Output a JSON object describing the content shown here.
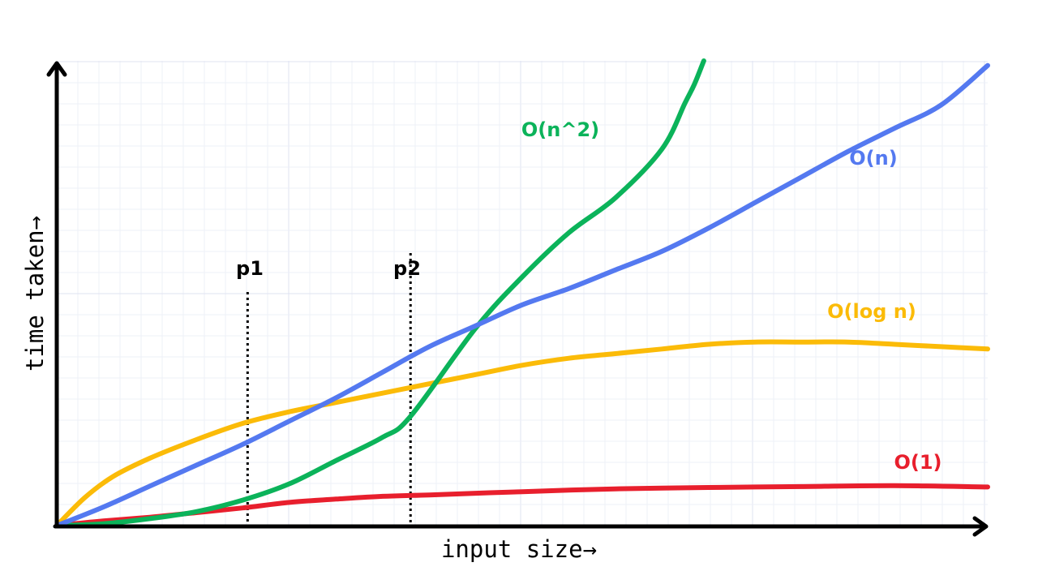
{
  "chart_data": {
    "type": "line",
    "xlabel": "input size→",
    "ylabel": "time taken→",
    "xlim": [
      0,
      10
    ],
    "ylim": [
      0,
      10
    ],
    "grid": true,
    "ticks_labeled": false,
    "series": [
      {
        "name": "O(n^2)",
        "color": "#0bb35a",
        "points": [
          [
            0,
            0
          ],
          [
            0.5,
            0.04
          ],
          [
            1,
            0.15
          ],
          [
            1.5,
            0.3
          ],
          [
            2,
            0.55
          ],
          [
            2.5,
            0.9
          ],
          [
            3,
            1.4
          ],
          [
            3.5,
            1.9
          ],
          [
            3.8,
            2.35
          ],
          [
            4.5,
            4.25
          ],
          [
            5,
            5.35
          ],
          [
            5.5,
            6.3
          ],
          [
            6,
            7.05
          ],
          [
            6.5,
            8.1
          ],
          [
            6.75,
            9.1
          ],
          [
            6.85,
            9.5
          ],
          [
            6.95,
            10
          ]
        ]
      },
      {
        "name": "O(n)",
        "color": "#5479f0",
        "points": [
          [
            0,
            0
          ],
          [
            0.5,
            0.4
          ],
          [
            1,
            0.85
          ],
          [
            1.5,
            1.3
          ],
          [
            2,
            1.75
          ],
          [
            2.5,
            2.25
          ],
          [
            3,
            2.75
          ],
          [
            3.5,
            3.3
          ],
          [
            4,
            3.85
          ],
          [
            4.5,
            4.3
          ],
          [
            5,
            4.75
          ],
          [
            5.5,
            5.1
          ],
          [
            6,
            5.5
          ],
          [
            6.5,
            5.9
          ],
          [
            7,
            6.4
          ],
          [
            7.5,
            6.95
          ],
          [
            8,
            7.5
          ],
          [
            8.5,
            8.05
          ],
          [
            9,
            8.55
          ],
          [
            9.5,
            9.05
          ],
          [
            10,
            9.9
          ]
        ]
      },
      {
        "name": "O(log n)",
        "color": "#fbbb08",
        "points": [
          [
            0,
            0
          ],
          [
            0.3,
            0.6
          ],
          [
            0.6,
            1.05
          ],
          [
            1,
            1.45
          ],
          [
            1.5,
            1.85
          ],
          [
            2,
            2.2
          ],
          [
            2.5,
            2.45
          ],
          [
            3,
            2.65
          ],
          [
            3.5,
            2.85
          ],
          [
            4,
            3.05
          ],
          [
            4.5,
            3.25
          ],
          [
            5,
            3.45
          ],
          [
            5.5,
            3.6
          ],
          [
            6,
            3.7
          ],
          [
            6.5,
            3.8
          ],
          [
            7,
            3.9
          ],
          [
            7.5,
            3.95
          ],
          [
            8,
            3.95
          ],
          [
            8.5,
            3.95
          ],
          [
            9,
            3.9
          ],
          [
            9.5,
            3.85
          ],
          [
            10,
            3.8
          ]
        ]
      },
      {
        "name": "O(1)",
        "color": "#e81f2d",
        "points": [
          [
            0,
            0
          ],
          [
            0.5,
            0.1
          ],
          [
            1,
            0.18
          ],
          [
            1.5,
            0.28
          ],
          [
            2,
            0.38
          ],
          [
            2.5,
            0.5
          ],
          [
            3,
            0.57
          ],
          [
            3.5,
            0.63
          ],
          [
            4,
            0.66
          ],
          [
            5,
            0.73
          ],
          [
            6,
            0.79
          ],
          [
            7,
            0.82
          ],
          [
            8,
            0.84
          ],
          [
            9,
            0.86
          ],
          [
            10,
            0.83
          ]
        ]
      }
    ],
    "markers": [
      {
        "label": "p1",
        "x": 2.05
      },
      {
        "label": "p2",
        "x": 3.8
      }
    ]
  }
}
